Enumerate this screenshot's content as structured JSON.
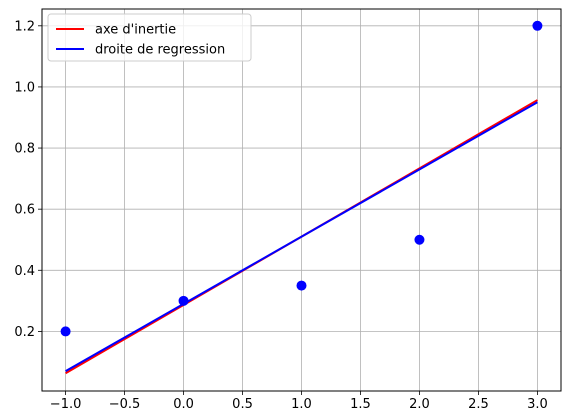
{
  "chart_data": {
    "type": "scatter",
    "title": "",
    "xlabel": "",
    "ylabel": "",
    "xlim": [
      -1.2,
      3.2
    ],
    "ylim": [
      0.005,
      1.255
    ],
    "grid": true,
    "legend_position": "top-left",
    "x_ticks": [
      -1.0,
      -0.5,
      0.0,
      0.5,
      1.0,
      1.5,
      2.0,
      2.5,
      3.0
    ],
    "x_tick_labels": [
      "−1.0",
      "−0.5",
      "0.0",
      "0.5",
      "1.0",
      "1.5",
      "2.0",
      "2.5",
      "3.0"
    ],
    "y_ticks": [
      0.2,
      0.4,
      0.6,
      0.8,
      1.0,
      1.2
    ],
    "y_tick_labels": [
      "0.2",
      "0.4",
      "0.6",
      "0.8",
      "1.0",
      "1.2"
    ],
    "points": {
      "color": "#0000ff",
      "x": [
        -1,
        0,
        1,
        2,
        3
      ],
      "y": [
        0.2,
        0.3,
        0.35,
        0.5,
        1.2
      ]
    },
    "series": [
      {
        "name": "axe d'inertie",
        "color": "#ff0000",
        "x": [
          -1,
          3
        ],
        "y": [
          0.063,
          0.957
        ]
      },
      {
        "name": "droite de regression",
        "color": "#0000ff",
        "x": [
          -1,
          3
        ],
        "y": [
          0.07,
          0.95
        ]
      }
    ]
  }
}
